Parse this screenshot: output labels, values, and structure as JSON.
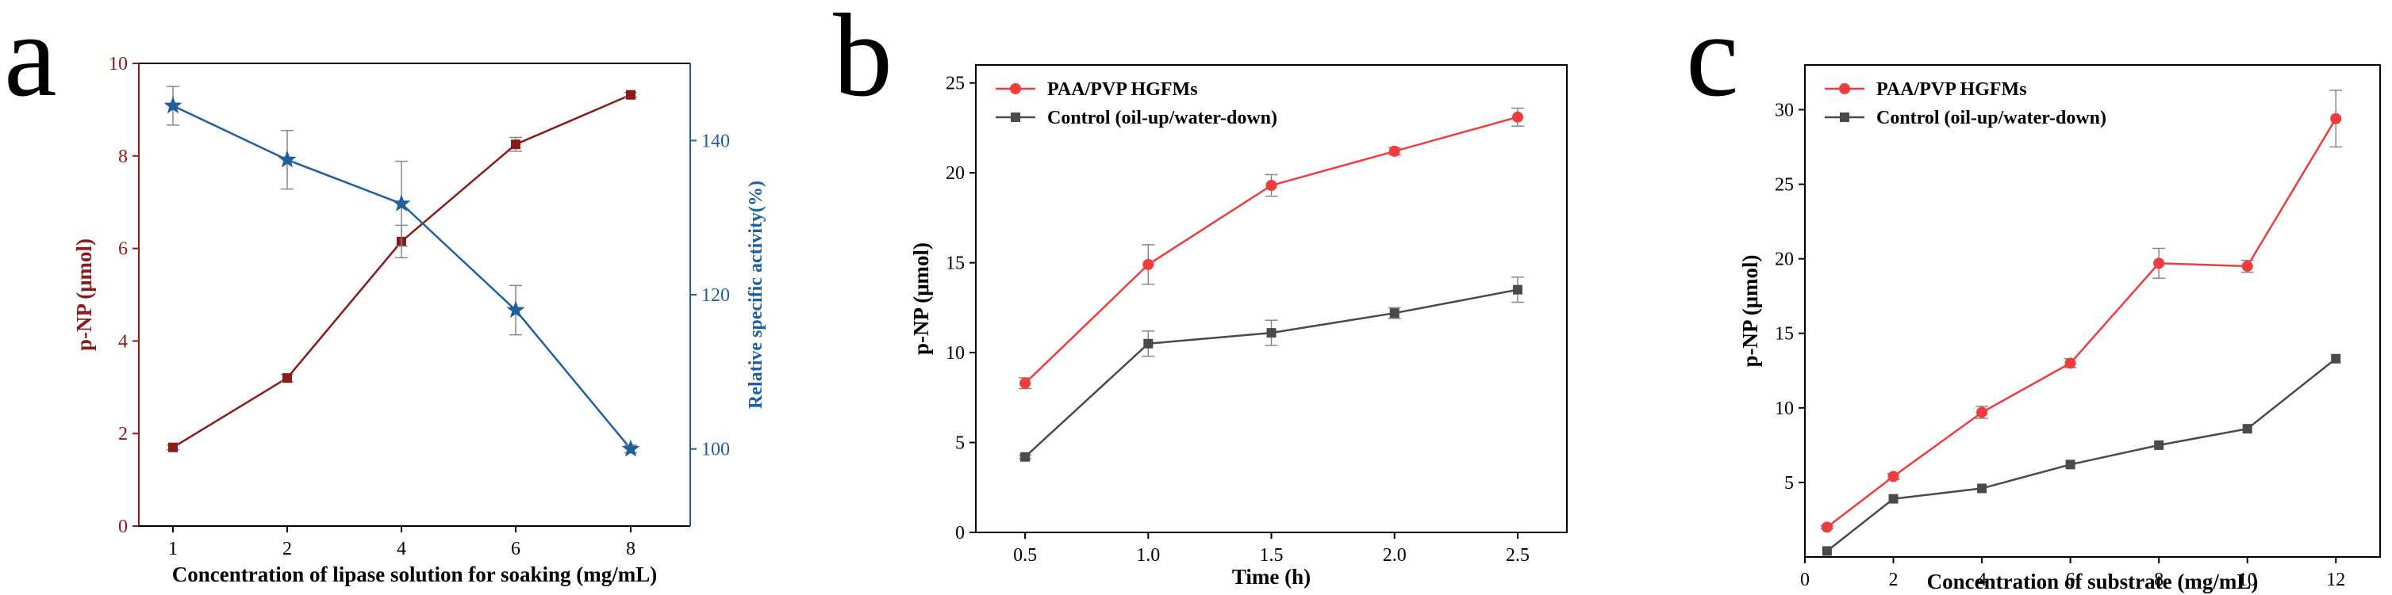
{
  "panel_letters": [
    "a",
    "b",
    "c"
  ],
  "colors": {
    "dark_red": "#8b1a1a",
    "blue": "#1f5fa0",
    "red": "#f03c3c",
    "gray": "#4a4a4a",
    "axis": "#000000",
    "error": "#888888"
  },
  "chart_data": [
    {
      "id": "a",
      "type": "line",
      "x_mode": "category",
      "categories": [
        "1",
        "2",
        "4",
        "6",
        "8"
      ],
      "xlabel": "Concentration of lipase solution for soaking (mg/mL)",
      "ylabel": "p-NP (μmol)",
      "ylim": [
        0,
        10
      ],
      "yticks": [
        0,
        2,
        4,
        6,
        8,
        10
      ],
      "y2label": "Relative specific  activity(%)",
      "y2lim": [
        90,
        150
      ],
      "y2ticks": [
        100,
        120,
        140
      ],
      "legend": "none",
      "series": [
        {
          "name": "p-NP",
          "axis": "left",
          "color": "#8b1a1a",
          "marker": "square",
          "values": [
            1.7,
            3.2,
            6.15,
            8.25,
            9.32
          ],
          "errors": [
            0.05,
            0.08,
            0.35,
            0.15,
            0.05
          ]
        },
        {
          "name": "Relative specific activity",
          "axis": "right",
          "color": "#1f5fa0",
          "marker": "star",
          "values": [
            144.5,
            137.5,
            131.8,
            118.0,
            100.0
          ],
          "errors": [
            2.5,
            3.8,
            5.5,
            3.2,
            0.5
          ]
        }
      ]
    },
    {
      "id": "b",
      "type": "line",
      "x_mode": "numeric",
      "xlim": [
        0.3,
        2.7
      ],
      "xticks": [
        0.5,
        1.0,
        1.5,
        2.0,
        2.5
      ],
      "xticklabels": [
        "0.5",
        "1.0",
        "1.5",
        "2.0",
        "2.5"
      ],
      "xlabel": "Time (h)",
      "ylabel": "p-NP (μmol)",
      "ylim": [
        0,
        26
      ],
      "yticks": [
        0,
        5,
        10,
        15,
        20,
        25
      ],
      "legend": "top-left",
      "series": [
        {
          "name": "PAA/PVP HGFMs",
          "color": "#f03c3c",
          "marker": "circle",
          "x": [
            0.5,
            1.0,
            1.5,
            2.0,
            2.5
          ],
          "values": [
            8.3,
            14.9,
            19.3,
            21.2,
            23.1
          ],
          "errors": [
            0.3,
            1.1,
            0.6,
            0.2,
            0.5
          ]
        },
        {
          "name": "Control (oil-up/water-down)",
          "color": "#4a4a4a",
          "marker": "square",
          "x": [
            0.5,
            1.0,
            1.5,
            2.0,
            2.5
          ],
          "values": [
            4.2,
            10.5,
            11.1,
            12.2,
            13.5
          ],
          "errors": [
            0.1,
            0.7,
            0.7,
            0.3,
            0.7
          ]
        }
      ]
    },
    {
      "id": "c",
      "type": "line",
      "x_mode": "numeric",
      "xlim": [
        0,
        13
      ],
      "xticks": [
        0,
        2,
        4,
        6,
        8,
        10,
        12
      ],
      "xticklabels": [
        "0",
        "2",
        "4",
        "6",
        "8",
        "10",
        "12"
      ],
      "xlabel": "Concentration of substrate (mg/mL)",
      "ylabel": "p-NP (μmol)",
      "ylim": [
        0,
        33
      ],
      "yticks": [
        5,
        10,
        15,
        20,
        25,
        30
      ],
      "legend": "top-left",
      "series": [
        {
          "name": "PAA/PVP HGFMs",
          "color": "#f03c3c",
          "marker": "circle",
          "x": [
            0.5,
            2,
            4,
            6,
            8,
            10,
            12
          ],
          "values": [
            2.0,
            5.4,
            9.7,
            13.0,
            19.7,
            19.5,
            29.4
          ],
          "errors": [
            0.1,
            0.2,
            0.4,
            0.3,
            1.0,
            0.4,
            1.9
          ]
        },
        {
          "name": "Control (oil-up/water-down)",
          "color": "#4a4a4a",
          "marker": "square",
          "x": [
            0.5,
            2,
            4,
            6,
            8,
            10,
            12
          ],
          "values": [
            0.4,
            3.9,
            4.6,
            6.2,
            7.5,
            8.6,
            13.3
          ],
          "errors": [
            0,
            0,
            0,
            0,
            0,
            0,
            0
          ]
        }
      ]
    }
  ]
}
